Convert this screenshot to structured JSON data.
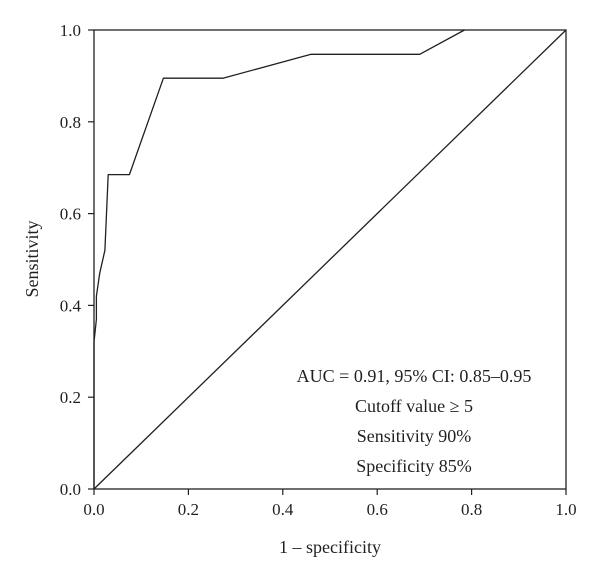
{
  "chart_data": {
    "type": "line",
    "title": "",
    "xlabel": "1 – specificity",
    "ylabel": "Sensitivity",
    "xlim": [
      0.0,
      1.0
    ],
    "ylim": [
      0.0,
      1.0
    ],
    "x_ticks": [
      "0.0",
      "0.2",
      "0.4",
      "0.6",
      "0.8",
      "1.0"
    ],
    "y_ticks": [
      "0.0",
      "0.2",
      "0.4",
      "0.6",
      "0.8",
      "1.0"
    ],
    "grid": false,
    "series": [
      {
        "x": [
          0.0,
          0.0,
          0.005,
          0.005,
          0.012,
          0.023,
          0.03,
          0.075,
          0.147,
          0.273,
          0.46,
          0.69,
          0.785
        ],
        "y": [
          0.0,
          0.32,
          0.37,
          0.42,
          0.47,
          0.52,
          0.685,
          0.685,
          0.895,
          0.895,
          0.947,
          0.947,
          1.0
        ]
      },
      {
        "x": [
          0.0,
          1.0
        ],
        "y": [
          0.0,
          1.0
        ]
      }
    ],
    "annotations": [
      "AUC = 0.91, 95% CI: 0.85–0.95",
      "Cutoff value ≥ 5",
      "Sensitivity 90%",
      "Specificity 85%"
    ],
    "colors": {
      "line": "#231f20",
      "axis": "#231f20",
      "background": "#ffffff"
    }
  }
}
